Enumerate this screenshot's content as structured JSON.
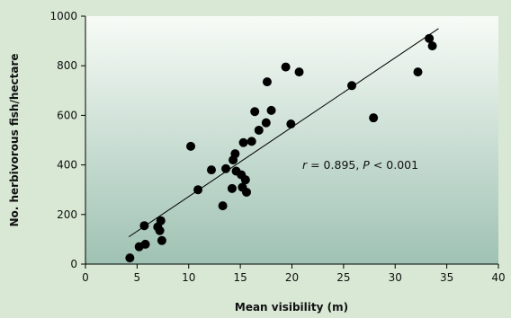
{
  "chart_data": {
    "type": "scatter",
    "title": "",
    "xlabel": "Mean visibility (m)",
    "ylabel": "No. herbivorous fish/hectare",
    "xlim": [
      0,
      40
    ],
    "ylim": [
      0,
      1000
    ],
    "xticks": [
      0,
      5,
      10,
      15,
      20,
      25,
      30,
      35,
      40
    ],
    "yticks": [
      0,
      200,
      400,
      600,
      800,
      1000
    ],
    "grid": false,
    "legend": "none",
    "annotation": {
      "r_symbol": "r",
      "r_text": " = 0.895, ",
      "p_symbol": "P",
      "p_text": " < 0.001"
    },
    "trendline": {
      "x": [
        4.2,
        34.2
      ],
      "y": [
        110,
        950
      ]
    },
    "points": [
      {
        "x": 4.3,
        "y": 25
      },
      {
        "x": 5.2,
        "y": 70
      },
      {
        "x": 5.8,
        "y": 80
      },
      {
        "x": 5.7,
        "y": 155
      },
      {
        "x": 7.0,
        "y": 150
      },
      {
        "x": 7.2,
        "y": 135
      },
      {
        "x": 7.3,
        "y": 175
      },
      {
        "x": 7.4,
        "y": 95
      },
      {
        "x": 10.2,
        "y": 475
      },
      {
        "x": 10.9,
        "y": 300
      },
      {
        "x": 12.2,
        "y": 380
      },
      {
        "x": 13.3,
        "y": 235
      },
      {
        "x": 13.6,
        "y": 385
      },
      {
        "x": 14.2,
        "y": 305
      },
      {
        "x": 14.3,
        "y": 420
      },
      {
        "x": 14.5,
        "y": 445
      },
      {
        "x": 14.6,
        "y": 375
      },
      {
        "x": 15.1,
        "y": 360
      },
      {
        "x": 15.2,
        "y": 310
      },
      {
        "x": 15.3,
        "y": 490
      },
      {
        "x": 15.5,
        "y": 340
      },
      {
        "x": 15.6,
        "y": 290
      },
      {
        "x": 16.1,
        "y": 495
      },
      {
        "x": 16.4,
        "y": 615
      },
      {
        "x": 16.8,
        "y": 540
      },
      {
        "x": 17.5,
        "y": 570
      },
      {
        "x": 17.6,
        "y": 735
      },
      {
        "x": 18.0,
        "y": 620
      },
      {
        "x": 19.4,
        "y": 795
      },
      {
        "x": 19.9,
        "y": 565
      },
      {
        "x": 20.7,
        "y": 775
      },
      {
        "x": 25.8,
        "y": 720
      },
      {
        "x": 27.9,
        "y": 590
      },
      {
        "x": 32.2,
        "y": 775
      },
      {
        "x": 33.3,
        "y": 910
      },
      {
        "x": 33.6,
        "y": 880
      }
    ]
  },
  "colors": {
    "page_background": "#d8e8d4",
    "plot_gradient_top": "#f7fbf6",
    "plot_gradient_bottom": "#9fc2b3",
    "marker": "#000000",
    "axis": "#000000"
  }
}
